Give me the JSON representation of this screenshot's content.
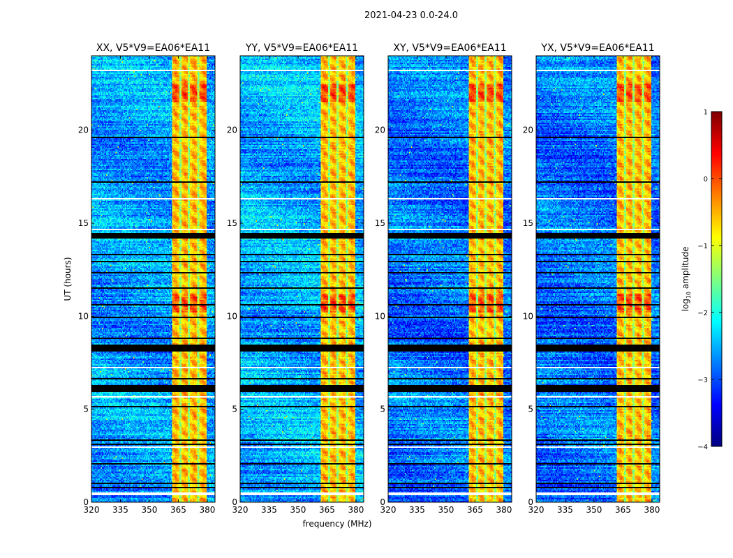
{
  "chart_data": {
    "type": "heatmap",
    "title": "2021-04-23 0.0-24.0",
    "xlabel": "frequency (MHz)",
    "ylabel": "UT (hours)",
    "xlim": [
      320,
      384
    ],
    "ylim": [
      0,
      24
    ],
    "xticks": [
      320,
      335,
      350,
      365,
      380
    ],
    "yticks": [
      0,
      5,
      10,
      15,
      20
    ],
    "panels": [
      {
        "title": "XX, V5*V9=EA06*EA11",
        "background_level": -2.6
      },
      {
        "title": "YY, V5*V9=EA06*EA11",
        "background_level": -2.5
      },
      {
        "title": "XY, V5*V9=EA06*EA11",
        "background_level": -2.8
      },
      {
        "title": "YX, V5*V9=EA06*EA11",
        "background_level": -2.8
      }
    ],
    "colorbar": {
      "label": "log10 amplitude",
      "label_main": "log",
      "label_sub": "10",
      "label_rest": " amplitude",
      "colormap": "jet",
      "range": [
        -4,
        1
      ],
      "ticks": [
        1,
        0,
        -1,
        -2,
        -3,
        -4
      ],
      "tick_labels": [
        "1",
        "0",
        "−1",
        "−2",
        "−3",
        "−4"
      ]
    },
    "rfi_band_mhz": [
      361.5,
      379.5
    ],
    "rfi_band_level": -0.6,
    "rfi_gaps_mhz": [
      366.2,
      370.5,
      375.2
    ],
    "flagged_white_hours": [
      [
        0.35,
        0.5
      ],
      [
        2.93,
        3.03
      ],
      [
        5.6,
        5.72
      ],
      [
        7.18,
        7.3
      ],
      [
        14.6,
        14.72
      ],
      [
        16.28,
        16.38
      ],
      [
        23.15,
        23.22
      ]
    ],
    "flagged_black_hours": [
      [
        0.78,
        0.82
      ],
      [
        1.0,
        1.04
      ],
      [
        2.05,
        2.08
      ],
      [
        3.1,
        3.16
      ],
      [
        3.3,
        3.34
      ],
      [
        3.5,
        3.54
      ],
      [
        4.1,
        4.14
      ],
      [
        4.7,
        4.74
      ],
      [
        5.1,
        5.14
      ],
      [
        5.95,
        6.3
      ],
      [
        6.6,
        6.64
      ],
      [
        7.55,
        7.58
      ],
      [
        8.1,
        8.5
      ],
      [
        8.8,
        8.84
      ],
      [
        9.2,
        9.24
      ],
      [
        9.9,
        9.94
      ],
      [
        10.6,
        10.63
      ],
      [
        11.5,
        11.54
      ],
      [
        12.3,
        12.34
      ],
      [
        12.9,
        12.94
      ],
      [
        13.3,
        13.33
      ],
      [
        14.2,
        14.5
      ],
      [
        16.85,
        16.9
      ],
      [
        17.2,
        17.25
      ],
      [
        17.6,
        17.64
      ],
      [
        18.8,
        18.84
      ],
      [
        19.6,
        19.63
      ],
      [
        21.2,
        21.23
      ],
      [
        22.4,
        22.45
      ],
      [
        23.3,
        23.36
      ],
      [
        23.6,
        23.64
      ],
      [
        23.9,
        23.95
      ]
    ],
    "hot_time_ranges_hours": [
      [
        10.2,
        11.2
      ],
      [
        21.5,
        22.5
      ]
    ]
  }
}
